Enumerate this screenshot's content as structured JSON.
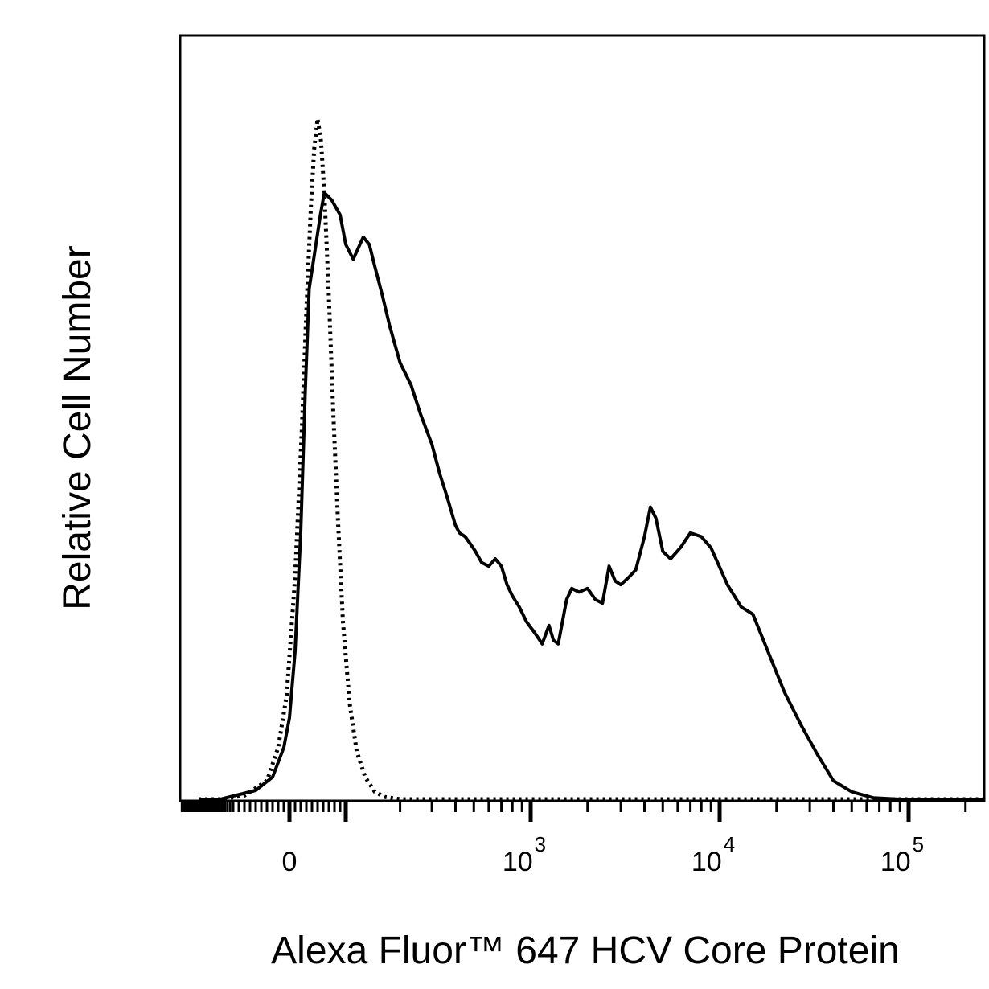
{
  "chart_data": {
    "type": "line",
    "xlabel": "Alexa Fluor™ 647 HCV Core Protein",
    "ylabel": "Relative Cell Number",
    "x_scale": "biexponential",
    "x_tick_labels": [
      {
        "value": 0,
        "base": "0",
        "exp": ""
      },
      {
        "value": 1000,
        "base": "10",
        "exp": "3"
      },
      {
        "value": 10000,
        "base": "10",
        "exp": "4"
      },
      {
        "value": 100000,
        "base": "10",
        "exp": "5"
      }
    ],
    "xlim": [
      -300,
      250000
    ],
    "ylim": [
      0,
      100
    ],
    "grid": false,
    "legend": "none",
    "series": [
      {
        "style": "solid",
        "color": "#000000",
        "points": [
          [
            -300,
            0
          ],
          [
            -150,
            0
          ],
          [
            -60,
            1.2
          ],
          [
            -30,
            3
          ],
          [
            -10,
            7
          ],
          [
            0,
            11
          ],
          [
            10,
            20
          ],
          [
            20,
            36
          ],
          [
            28,
            55
          ],
          [
            35,
            69
          ],
          [
            45,
            74
          ],
          [
            55,
            79
          ],
          [
            62,
            82
          ],
          [
            75,
            81
          ],
          [
            90,
            79
          ],
          [
            100,
            75
          ],
          [
            110,
            73
          ],
          [
            125,
            76
          ],
          [
            135,
            75
          ],
          [
            145,
            72
          ],
          [
            160,
            68
          ],
          [
            175,
            64
          ],
          [
            200,
            59
          ],
          [
            230,
            56
          ],
          [
            260,
            52
          ],
          [
            300,
            48
          ],
          [
            330,
            44
          ],
          [
            360,
            41
          ],
          [
            400,
            37
          ],
          [
            420,
            36
          ],
          [
            450,
            35.5
          ],
          [
            480,
            34.5
          ],
          [
            510,
            33.5
          ],
          [
            550,
            32
          ],
          [
            600,
            31.5
          ],
          [
            650,
            32.5
          ],
          [
            700,
            31.5
          ],
          [
            750,
            29
          ],
          [
            800,
            27.5
          ],
          [
            870,
            26
          ],
          [
            950,
            24
          ],
          [
            1050,
            22.5
          ],
          [
            1150,
            21
          ],
          [
            1250,
            23.5
          ],
          [
            1320,
            21.5
          ],
          [
            1400,
            21
          ],
          [
            1550,
            27
          ],
          [
            1650,
            28.5
          ],
          [
            1800,
            28
          ],
          [
            2000,
            28.5
          ],
          [
            2200,
            27
          ],
          [
            2400,
            26.5
          ],
          [
            2600,
            31.5
          ],
          [
            2800,
            29.5
          ],
          [
            3000,
            29
          ],
          [
            3300,
            30
          ],
          [
            3600,
            31
          ],
          [
            4000,
            35.5
          ],
          [
            4300,
            39.5
          ],
          [
            4600,
            38
          ],
          [
            5000,
            33.5
          ],
          [
            5500,
            32.5
          ],
          [
            6200,
            34
          ],
          [
            7000,
            36
          ],
          [
            8000,
            35.5
          ],
          [
            9000,
            34
          ],
          [
            11000,
            29
          ],
          [
            13000,
            26
          ],
          [
            15000,
            25
          ],
          [
            18000,
            20
          ],
          [
            22000,
            14.5
          ],
          [
            27000,
            10
          ],
          [
            33000,
            6
          ],
          [
            40000,
            2.5
          ],
          [
            50000,
            1
          ],
          [
            65000,
            0.2
          ],
          [
            90000,
            0
          ],
          [
            250000,
            0
          ]
        ]
      },
      {
        "style": "dotted",
        "color": "#000000",
        "points": [
          [
            -300,
            0
          ],
          [
            -150,
            0
          ],
          [
            -80,
            0.5
          ],
          [
            -40,
            2.5
          ],
          [
            -20,
            7
          ],
          [
            -5,
            14
          ],
          [
            10,
            30
          ],
          [
            22,
            50
          ],
          [
            30,
            66
          ],
          [
            38,
            80
          ],
          [
            44,
            88
          ],
          [
            50,
            92
          ],
          [
            56,
            89
          ],
          [
            62,
            82
          ],
          [
            70,
            68
          ],
          [
            78,
            52
          ],
          [
            86,
            38
          ],
          [
            95,
            24
          ],
          [
            105,
            13
          ],
          [
            115,
            6.5
          ],
          [
            128,
            3
          ],
          [
            145,
            1
          ],
          [
            165,
            0.3
          ],
          [
            200,
            0
          ],
          [
            250000,
            0
          ]
        ]
      }
    ]
  }
}
